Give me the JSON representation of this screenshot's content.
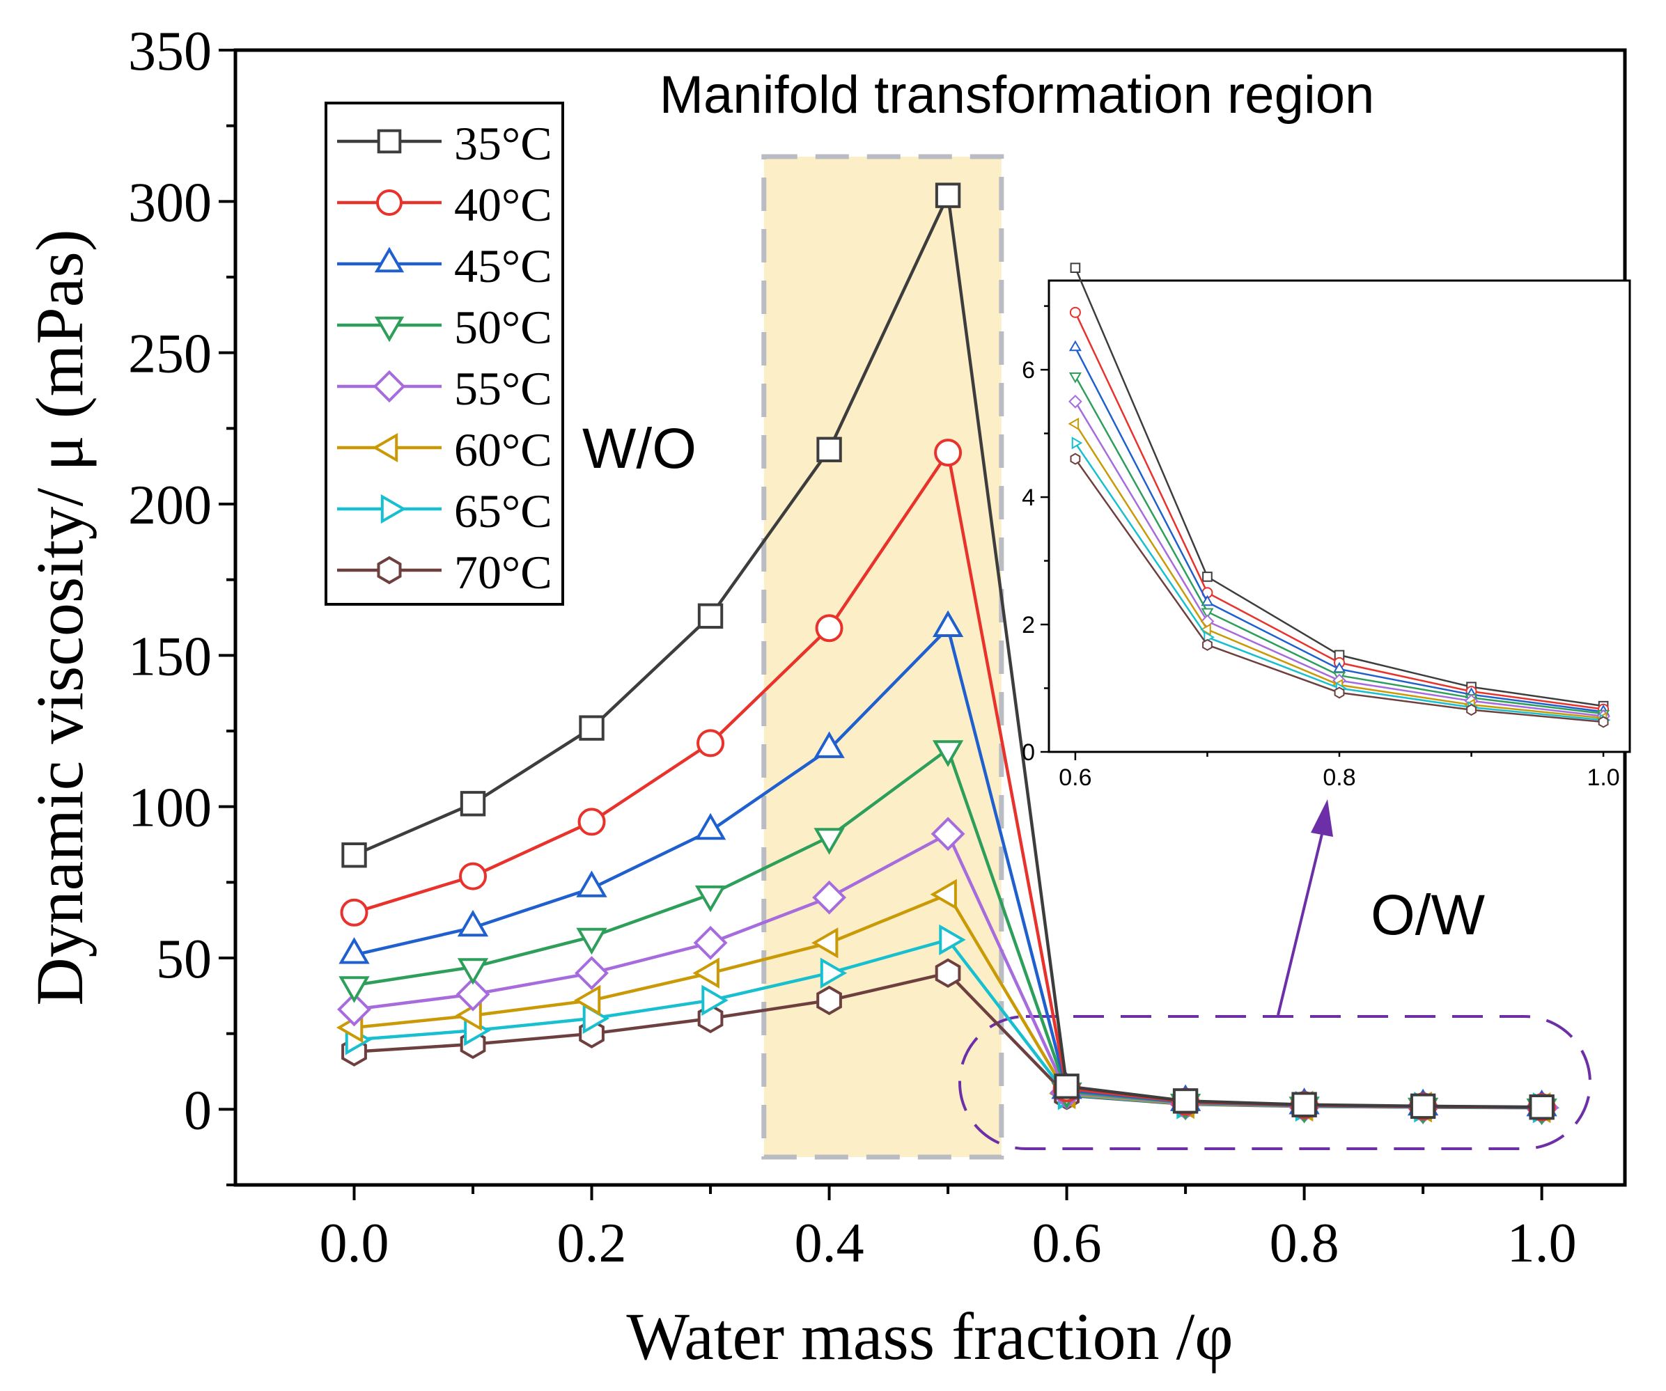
{
  "chart_data": {
    "type": "line",
    "title": "",
    "xlabel": "Water mass fraction /φ",
    "ylabel": "Dynamic viscosity/ μ (mPas)",
    "xlim": [
      -0.1,
      1.07
    ],
    "ylim": [
      -25,
      350
    ],
    "xticks": [
      "0.0",
      "0.2",
      "0.4",
      "0.6",
      "0.8",
      "1.0"
    ],
    "yticks": [
      "0",
      "50",
      "100",
      "150",
      "200",
      "250",
      "300",
      "350"
    ],
    "x": [
      0.0,
      0.1,
      0.2,
      0.3,
      0.4,
      0.5,
      0.6,
      0.7,
      0.8,
      0.9,
      1.0
    ],
    "series": [
      {
        "name": "35°C",
        "color": "#3d3d3d",
        "marker": "square",
        "values": [
          84,
          101,
          126,
          163,
          218,
          302,
          7.6,
          2.75,
          1.52,
          1.02,
          0.72
        ]
      },
      {
        "name": "40°C",
        "color": "#e8322c",
        "marker": "circle",
        "values": [
          65,
          77,
          95,
          121,
          159,
          217,
          6.9,
          2.5,
          1.4,
          0.95,
          0.67
        ]
      },
      {
        "name": "45°C",
        "color": "#1f5fce",
        "marker": "triangle-up",
        "values": [
          51,
          60,
          73,
          92,
          119,
          159,
          6.35,
          2.35,
          1.3,
          0.9,
          0.63
        ]
      },
      {
        "name": "50°C",
        "color": "#2e9e5b",
        "marker": "triangle-down",
        "values": [
          41,
          47,
          57,
          71,
          90,
          119,
          5.9,
          2.2,
          1.2,
          0.85,
          0.6
        ]
      },
      {
        "name": "55°C",
        "color": "#a66bdc",
        "marker": "diamond",
        "values": [
          33,
          38,
          45,
          55,
          70,
          91,
          5.5,
          2.05,
          1.12,
          0.8,
          0.56
        ]
      },
      {
        "name": "60°C",
        "color": "#c99a06",
        "marker": "triangle-left",
        "values": [
          27,
          31,
          36,
          45,
          55,
          71,
          5.15,
          1.92,
          1.05,
          0.74,
          0.53
        ]
      },
      {
        "name": "65°C",
        "color": "#17bfcf",
        "marker": "triangle-right",
        "values": [
          23,
          26,
          30,
          36,
          45,
          56,
          4.85,
          1.8,
          1.0,
          0.7,
          0.5
        ]
      },
      {
        "name": "70°C",
        "color": "#6e3f3f",
        "marker": "hexagon",
        "values": [
          19,
          21.5,
          25,
          30,
          36,
          45,
          4.6,
          1.68,
          0.93,
          0.66,
          0.47
        ]
      }
    ],
    "legend_position": "top-left",
    "annotations": {
      "region_title": "Manifold transformation region",
      "wo_label": "W/O",
      "ow_label": "O/W",
      "region_x_range": [
        0.345,
        0.545
      ]
    },
    "inset": {
      "type": "line",
      "x": [
        0.6,
        0.7,
        0.8,
        0.9,
        1.0
      ],
      "xlim": [
        0.58,
        1.02
      ],
      "ylim": [
        0,
        7.4
      ],
      "xticks": [
        "0.6",
        "0.8",
        "1.0"
      ],
      "yticks": [
        "0",
        "2",
        "4",
        "6"
      ],
      "position": "right"
    }
  }
}
